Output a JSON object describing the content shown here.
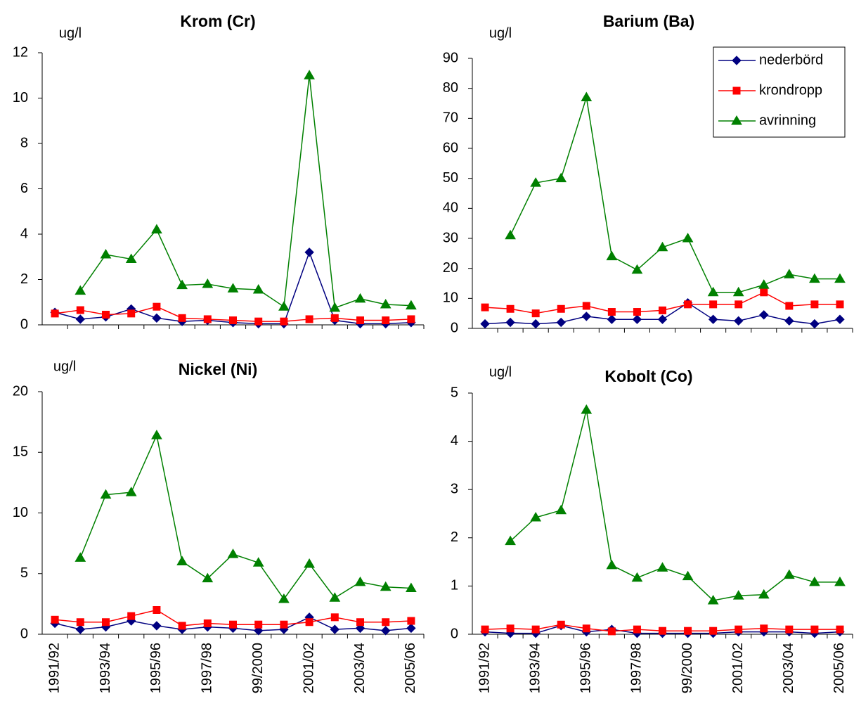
{
  "chart_data": [
    {
      "type": "line",
      "title": "Krom (Cr)",
      "y_label": "ug/l",
      "categories": [
        null,
        null,
        null,
        null,
        null,
        null,
        null,
        null,
        null,
        null,
        null,
        null,
        null,
        null,
        null
      ],
      "ylim": [
        0,
        12
      ],
      "yticks": [
        0,
        2,
        4,
        6,
        8,
        10,
        12
      ],
      "series": [
        {
          "color": "#000080",
          "marker": "diamond",
          "values": [
            0.55,
            0.25,
            0.35,
            0.7,
            0.3,
            0.15,
            0.2,
            0.1,
            0.05,
            0.05,
            3.2,
            0.2,
            0.05,
            0.05,
            0.1
          ]
        },
        {
          "color": "#ff0000",
          "marker": "square",
          "values": [
            0.5,
            0.65,
            0.45,
            0.5,
            0.8,
            0.3,
            0.25,
            0.2,
            0.15,
            0.15,
            0.25,
            0.3,
            0.2,
            0.2,
            0.25
          ]
        },
        {
          "color": "#008000",
          "marker": "triangle",
          "values": [
            null,
            1.5,
            3.1,
            2.9,
            4.2,
            1.75,
            1.8,
            1.6,
            1.55,
            0.8,
            11,
            0.75,
            1.15,
            0.9,
            0.85
          ]
        }
      ]
    },
    {
      "type": "line",
      "title": "Barium (Ba)",
      "y_label": "ug/l",
      "categories": [
        null,
        null,
        null,
        null,
        null,
        null,
        null,
        null,
        null,
        null,
        null,
        null,
        null,
        null,
        null
      ],
      "ylim": [
        0,
        90
      ],
      "yticks": [
        0,
        10,
        20,
        30,
        40,
        50,
        60,
        70,
        80,
        90
      ],
      "legend": "top-right",
      "series": [
        {
          "name": "nederbörd",
          "color": "#000080",
          "marker": "diamond",
          "values": [
            1.5,
            2,
            1.5,
            2,
            4,
            3,
            3,
            3,
            8.5,
            3,
            2.5,
            4.5,
            2.5,
            1.5,
            3
          ]
        },
        {
          "name": "krondropp",
          "color": "#ff0000",
          "marker": "square",
          "values": [
            7,
            6.5,
            5,
            6.5,
            7.5,
            5.5,
            5.5,
            6,
            8,
            8,
            8,
            12,
            7.5,
            8,
            8
          ]
        },
        {
          "name": "avrinning",
          "color": "#008000",
          "marker": "triangle",
          "values": [
            null,
            31,
            48.5,
            50,
            77,
            24,
            19.5,
            27,
            30,
            12,
            12,
            14.5,
            18,
            16.5,
            16.5
          ]
        }
      ]
    },
    {
      "type": "line",
      "title": "Nickel (Ni)",
      "y_label": "ug/l",
      "categories": [
        "1991/92",
        null,
        "1993/94",
        null,
        "1995/96",
        null,
        "1997/98",
        null,
        "99/2000",
        null,
        "2001/02",
        null,
        "2003/04",
        null,
        "2005/06"
      ],
      "ylim": [
        0,
        20
      ],
      "yticks": [
        0,
        5,
        10,
        15,
        20
      ],
      "series": [
        {
          "color": "#000080",
          "marker": "diamond",
          "values": [
            0.9,
            0.4,
            0.6,
            1.1,
            0.7,
            0.4,
            0.6,
            0.5,
            0.3,
            0.4,
            1.4,
            0.4,
            0.5,
            0.3,
            0.5
          ]
        },
        {
          "color": "#ff0000",
          "marker": "square",
          "values": [
            1.2,
            1,
            1,
            1.5,
            2,
            0.7,
            0.9,
            0.8,
            0.8,
            0.8,
            1,
            1.4,
            1,
            1,
            1.1
          ]
        },
        {
          "color": "#008000",
          "marker": "triangle",
          "values": [
            null,
            6.3,
            11.5,
            11.7,
            16.4,
            6,
            4.6,
            6.6,
            5.9,
            2.9,
            5.8,
            3,
            4.3,
            3.9,
            3.8
          ]
        }
      ]
    },
    {
      "type": "line",
      "title": "Kobolt (Co)",
      "y_label": "ug/l",
      "categories": [
        "1991/92",
        null,
        "1993/94",
        null,
        "1995/96",
        null,
        "1997/98",
        null,
        "99/2000",
        null,
        "2001/02",
        null,
        "2003/04",
        null,
        "2005/06"
      ],
      "ylim": [
        0,
        5
      ],
      "yticks": [
        0,
        1,
        2,
        3,
        4,
        5
      ],
      "series": [
        {
          "color": "#000080",
          "marker": "diamond",
          "values": [
            0.05,
            0.02,
            0.02,
            0.18,
            0.05,
            0.1,
            0.02,
            0.02,
            0.02,
            0.02,
            0.05,
            0.05,
            0.05,
            0.02,
            0.05
          ]
        },
        {
          "color": "#ff0000",
          "marker": "square",
          "values": [
            0.1,
            0.12,
            0.1,
            0.2,
            0.12,
            0.06,
            0.1,
            0.07,
            0.07,
            0.07,
            0.1,
            0.12,
            0.1,
            0.1,
            0.1
          ]
        },
        {
          "color": "#008000",
          "marker": "triangle",
          "values": [
            null,
            1.93,
            2.42,
            2.57,
            4.65,
            1.43,
            1.17,
            1.38,
            1.2,
            0.7,
            0.8,
            0.82,
            1.23,
            1.08,
            1.08
          ]
        }
      ]
    }
  ]
}
